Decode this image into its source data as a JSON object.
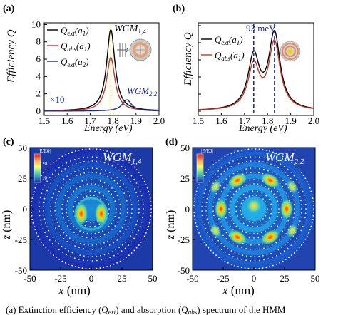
{
  "panels": {
    "a": {
      "label": "(a)",
      "ylabel": "Efficiency Q",
      "xlabel": "Energy (eV)",
      "xticks": [
        "1.5",
        "1.6",
        "1.7",
        "1.8",
        "1.9",
        "2.0"
      ],
      "yticks": [
        "0",
        "2",
        "4",
        "6",
        "8",
        "10"
      ],
      "legend": [
        {
          "text": "Q",
          "sub": "ext",
          "arg": "(a",
          "argsub": "1",
          "close": ")",
          "color": "#000000"
        },
        {
          "text": "Q",
          "sub": "abs",
          "arg": "(a",
          "argsub": "1",
          "close": ")",
          "color": "#c0392b"
        },
        {
          "text": "Q",
          "sub": "ext",
          "arg": "(a",
          "argsub": "2",
          "close": ")",
          "color": "#1f2d8c"
        }
      ],
      "annotation_wgm": {
        "main": "WGM",
        "sub": "1,4"
      },
      "annotation_wgm2": {
        "main": "WGM",
        "sub": "2,2"
      },
      "annotation_x10": "×10"
    },
    "b": {
      "label": "(b)",
      "ylabel": "Efficiency Q",
      "xlabel": "Energy (eV)",
      "xticks": [
        "1.5",
        "1.6",
        "1.7",
        "1.8",
        "1.9",
        "2.0"
      ],
      "splitting": "93 meV",
      "legend": [
        {
          "text": "Q",
          "sub": "ext",
          "arg": "(a",
          "argsub": "1",
          "close": ")",
          "color": "#000000"
        },
        {
          "text": "Q",
          "sub": "abs",
          "arg": "(a",
          "argsub": "1",
          "close": ")",
          "color": "#c0392b"
        }
      ]
    },
    "c": {
      "label": "(c)",
      "title_main": "WGM",
      "title_sub": "1,4",
      "xlabel_var": "x",
      "xlabel_unit": " (nm)",
      "ylabel_var": "z",
      "ylabel_unit": " (nm)",
      "xticks": [
        "-50",
        "-25",
        "0",
        "25",
        "50"
      ],
      "yticks": [
        "50",
        "25",
        "0",
        "-25",
        "-50"
      ],
      "cbar_label": "|E/E0|",
      "cbar_ticks": [
        "20",
        "10"
      ]
    },
    "d": {
      "label": "(d)",
      "title_main": "WGM",
      "title_sub": "2,2",
      "xlabel_var": "x",
      "xlabel_unit": " (nm)",
      "ylabel_var": "z",
      "ylabel_unit": " (nm)",
      "xticks": [
        "-50",
        "-25",
        "0",
        "25",
        "50"
      ],
      "yticks": [
        "50",
        "25",
        "0",
        "-25",
        "-50"
      ],
      "cbar_label": "|E/E0|"
    }
  },
  "caption": "(a) Extinction efficiency (Q",
  "caption_sub": "ext",
  "caption_rest": ") and absorption (Q",
  "caption_sub2": "abs",
  "caption_rest2": ") spectrum of the HMM",
  "chart_data": [
    {
      "type": "line",
      "xlim": [
        1.5,
        2.0
      ],
      "ylim": [
        -0.5,
        10
      ],
      "series": [
        {
          "name": "Qext(a1)",
          "peaks": [
            {
              "x": 1.79,
              "y": 9.4
            }
          ]
        },
        {
          "name": "Qabs(a1)",
          "peaks": [
            {
              "x": 1.79,
              "y": 6.2
            }
          ]
        },
        {
          "name": "Qext(a2)",
          "peaks": [
            {
              "x": 1.86,
              "y": 1.3
            }
          ]
        }
      ]
    },
    {
      "type": "line",
      "xlim": [
        1.5,
        2.0
      ],
      "series": [
        {
          "name": "Qext(a1)",
          "peaks": [
            {
              "x": 1.74,
              "y": 3.7
            },
            {
              "x": 1.83,
              "y": 5.3
            }
          ]
        },
        {
          "name": "Qabs(a1)",
          "peaks": [
            {
              "x": 1.74,
              "y": 3.1
            },
            {
              "x": 1.83,
              "y": 4.7
            }
          ]
        }
      ]
    }
  ]
}
